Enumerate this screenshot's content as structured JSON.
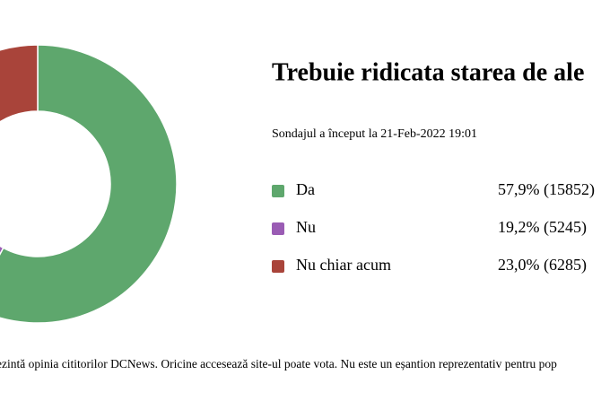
{
  "chart_data": {
    "type": "pie",
    "title": "Trebuie ridicata starea de ale",
    "subtitle": "Sondajul a început la 21-Feb-2022 19:01",
    "categories": [
      "Da",
      "Nu",
      "Nu chiar acum"
    ],
    "values": [
      57.9,
      19.2,
      23.0
    ],
    "value_labels": [
      "57,9% (15852)",
      "19,2% (5245)",
      "23,0% (6285)"
    ],
    "colors": [
      "#5ea76d",
      "#9a5cb4",
      "#a9443a"
    ],
    "note": "ezintă opinia cititorilor DCNews. Oricine accesează site-ul poate vota. Nu este un eșantion reprezentativ pentru pop"
  }
}
